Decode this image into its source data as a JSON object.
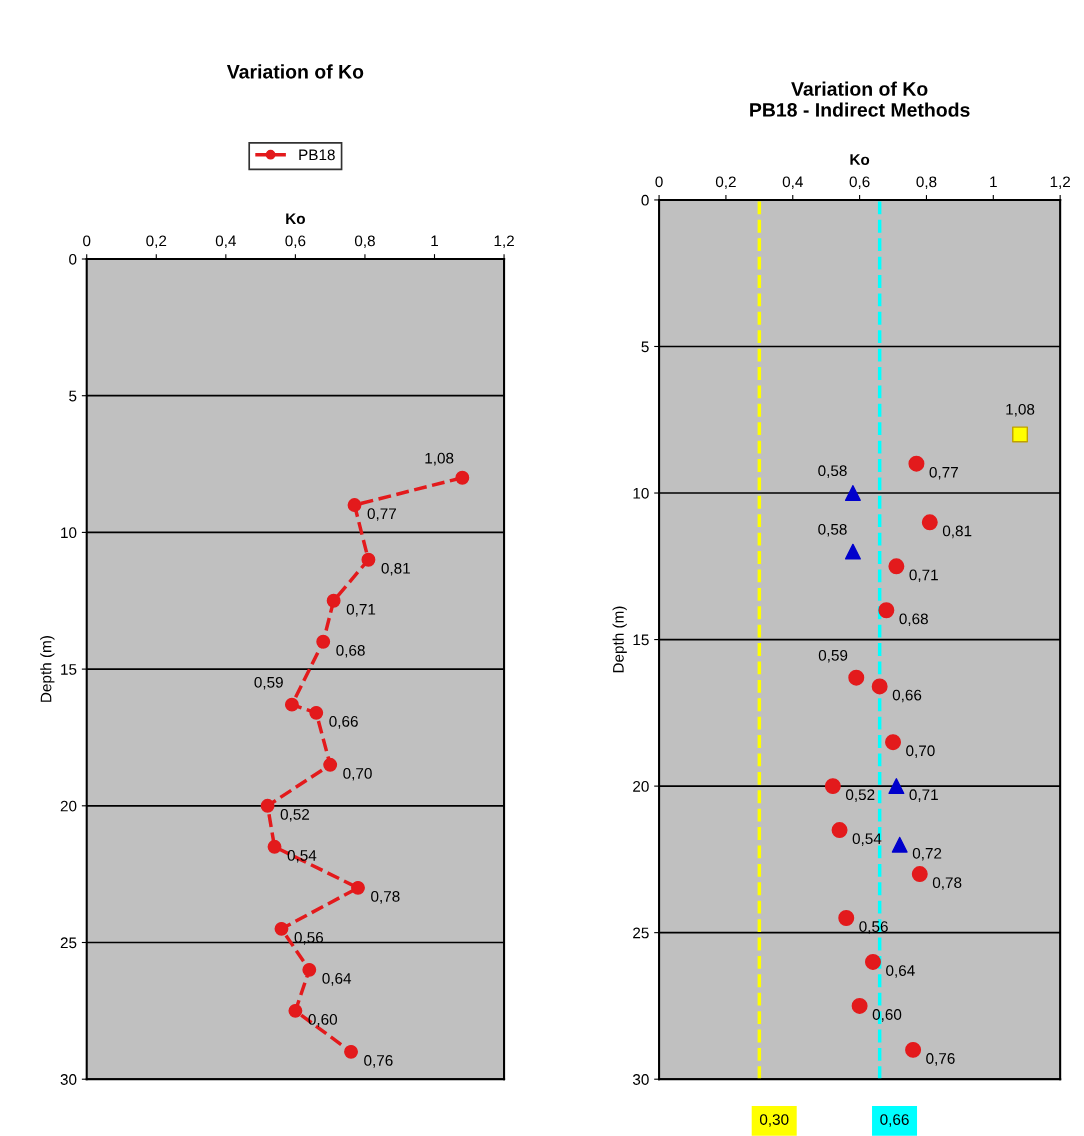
{
  "chart_data": [
    {
      "type": "line",
      "orientation": "horizontal",
      "title": "Variation of Ko",
      "xlabel": "Ko",
      "ylabel": "Depth (m)",
      "legend": "top",
      "grid": "y",
      "marker": "circle",
      "line_style": "dashed",
      "xlim": [
        0,
        1.2
      ],
      "xticks": [
        0,
        {
          "value": 0.2,
          "label": "0,2"
        },
        {
          "value": 0.4,
          "label": "0,4"
        },
        {
          "value": 0.6,
          "label": "0,6"
        },
        {
          "value": 0.8,
          "label": "0,8"
        },
        1,
        {
          "value": 1.2,
          "label": "1,2"
        }
      ],
      "ylim": [
        30,
        0
      ],
      "yticks": [
        0,
        5,
        10,
        15,
        20,
        25,
        30
      ],
      "series": [
        {
          "name": "PB18",
          "color": "#e31a1c",
          "values": [
            1.08,
            0.77,
            0.81,
            0.71,
            0.68,
            0.59,
            0.66,
            0.7,
            0.52,
            0.54,
            0.78,
            0.56,
            0.64,
            0.6,
            0.76
          ],
          "x": [
            8,
            9,
            11,
            12.5,
            14,
            16.3,
            16.6,
            18.5,
            20,
            21.5,
            23,
            24.5,
            26,
            27.5,
            29
          ],
          "value_labels": [
            "1,08",
            "0,77",
            "0,81",
            "0,71",
            "0,68",
            "0,59",
            "0,66",
            "0,70",
            "0,52",
            "0,54",
            "0,78",
            "0,56",
            "0,64",
            "0,60",
            "0,76"
          ]
        }
      ]
    },
    {
      "type": "scatter",
      "orientation": "horizontal",
      "title": "Variation of Ko",
      "subtitle": "PB18 - Indirect Methods",
      "xlabel": "Ko",
      "ylabel": "Depth (m)",
      "grid": "y",
      "xlim": [
        0,
        1.2
      ],
      "xticks": [
        0,
        {
          "value": 0.2,
          "label": "0,2"
        },
        {
          "value": 0.4,
          "label": "0,4"
        },
        {
          "value": 0.6,
          "label": "0,6"
        },
        {
          "value": 0.8,
          "label": "0,8"
        },
        1,
        {
          "value": 1.2,
          "label": "1,2"
        }
      ],
      "ylim": [
        30,
        0
      ],
      "yticks": [
        0,
        5,
        10,
        15,
        20,
        25,
        30
      ],
      "ref_lines": [
        {
          "axis": "x",
          "value": 0.3,
          "label": "0,30",
          "color": "#ffff00",
          "line_style": "dashed"
        },
        {
          "axis": "x",
          "value": 0.66,
          "label": "0,66",
          "color": "#00ffff",
          "line_style": "dashed"
        }
      ],
      "series": [
        {
          "color": "#e31a1c",
          "marker": "circle",
          "values": [
            0.77,
            0.81,
            0.71,
            0.68,
            0.59,
            0.66,
            0.7,
            0.52,
            0.54,
            0.78,
            0.56,
            0.64,
            0.6,
            0.76
          ],
          "x": [
            9,
            11,
            12.5,
            14,
            16.3,
            16.6,
            18.5,
            20,
            21.5,
            23,
            24.5,
            26,
            27.5,
            29
          ],
          "value_labels": [
            "0,77",
            "0,81",
            "0,71",
            "0,68",
            "0,59",
            "0,66",
            "0,70",
            "0,52",
            "0,54",
            "0,78",
            "0,56",
            "0,64",
            "0,60",
            "0,76"
          ]
        },
        {
          "color": "#0000cc",
          "marker": "triangle",
          "values": [
            0.58,
            0.58,
            0.71,
            0.72
          ],
          "x": [
            10,
            12,
            20,
            22
          ],
          "value_labels": [
            "0,58",
            "0,58",
            "0,71",
            "0,72"
          ]
        },
        {
          "color": "#ffff00",
          "marker": "square",
          "values": [
            1.08
          ],
          "x": [
            8
          ],
          "value_labels": [
            "1,08"
          ]
        }
      ]
    }
  ]
}
